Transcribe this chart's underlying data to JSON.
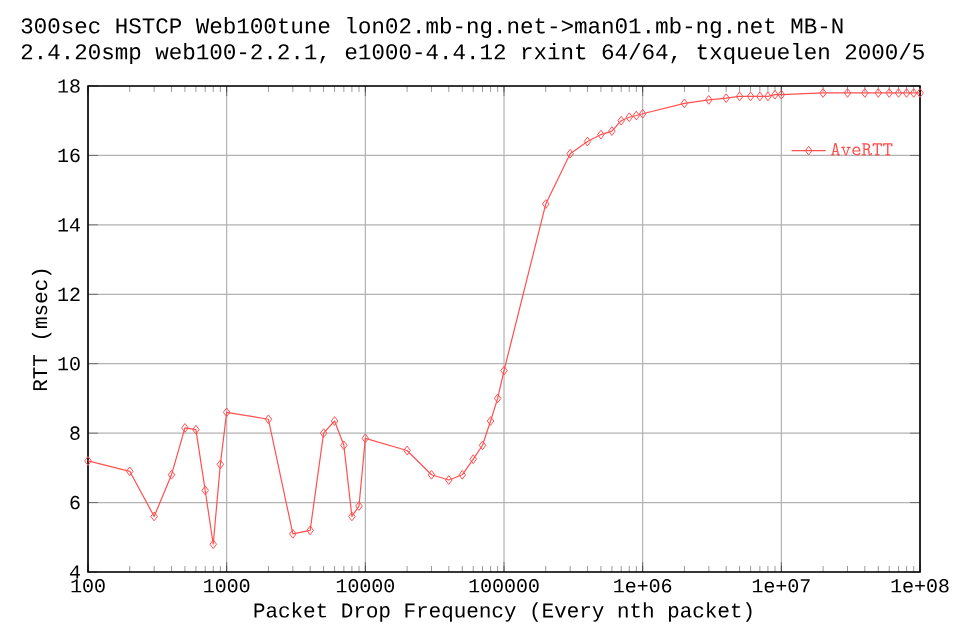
{
  "chart_data": {
    "type": "line",
    "title": "300sec HSTCP Web100tune lon02.mb-ng.net->man01.mb-ng.net MB-N",
    "subtitle": "2.4.20smp web100-2.2.1, e1000-4.4.12 rxint 64/64, txqueuelen 2000/5",
    "xlabel": "Packet Drop Frequency (Every nth packet)",
    "ylabel": "RTT (msec)",
    "log": "x",
    "grid": true,
    "legend": "top right",
    "marker": "diamond",
    "line_style": "solid",
    "xlim": [
      100,
      100000000
    ],
    "ylim": [
      4,
      18
    ],
    "xticks": [
      100,
      1000,
      10000,
      100000,
      {
        "value": 1000000,
        "label": "1e+06"
      },
      {
        "value": 10000000,
        "label": "1e+07"
      },
      {
        "value": 100000000,
        "label": "1e+08"
      }
    ],
    "yticks": [
      4,
      6,
      8,
      10,
      12,
      14,
      16,
      18
    ],
    "series": [
      {
        "name": "AveRTT",
        "color": "#ff5050",
        "x": [
          100,
          200,
          300,
          400,
          500,
          600,
          700,
          800,
          900,
          1000,
          2000,
          3000,
          4000,
          5000,
          6000,
          7000,
          8000,
          9000,
          10000,
          20000,
          30000,
          40000,
          50000,
          60000,
          70000,
          80000,
          90000,
          100000,
          200000,
          300000,
          400000,
          500000,
          600000,
          700000,
          800000,
          900000,
          1000000,
          2000000,
          3000000,
          4000000,
          5000000,
          6000000,
          7000000,
          8000000,
          9000000,
          10000000,
          20000000,
          30000000,
          40000000,
          50000000,
          60000000,
          70000000,
          80000000,
          90000000,
          100000000
        ],
        "values": [
          7.2,
          6.9,
          5.6,
          6.8,
          8.15,
          8.1,
          6.35,
          4.8,
          7.1,
          8.6,
          8.4,
          5.1,
          5.2,
          8.0,
          8.35,
          7.65,
          5.6,
          5.9,
          7.85,
          7.5,
          6.8,
          6.65,
          6.8,
          7.25,
          7.65,
          8.35,
          9.0,
          9.8,
          14.6,
          16.05,
          16.4,
          16.6,
          16.7,
          17.0,
          17.1,
          17.15,
          17.2,
          17.5,
          17.6,
          17.65,
          17.7,
          17.7,
          17.7,
          17.7,
          17.75,
          17.75,
          17.8,
          17.8,
          17.8,
          17.8,
          17.8,
          17.8,
          17.8,
          17.8,
          17.8
        ]
      }
    ]
  }
}
